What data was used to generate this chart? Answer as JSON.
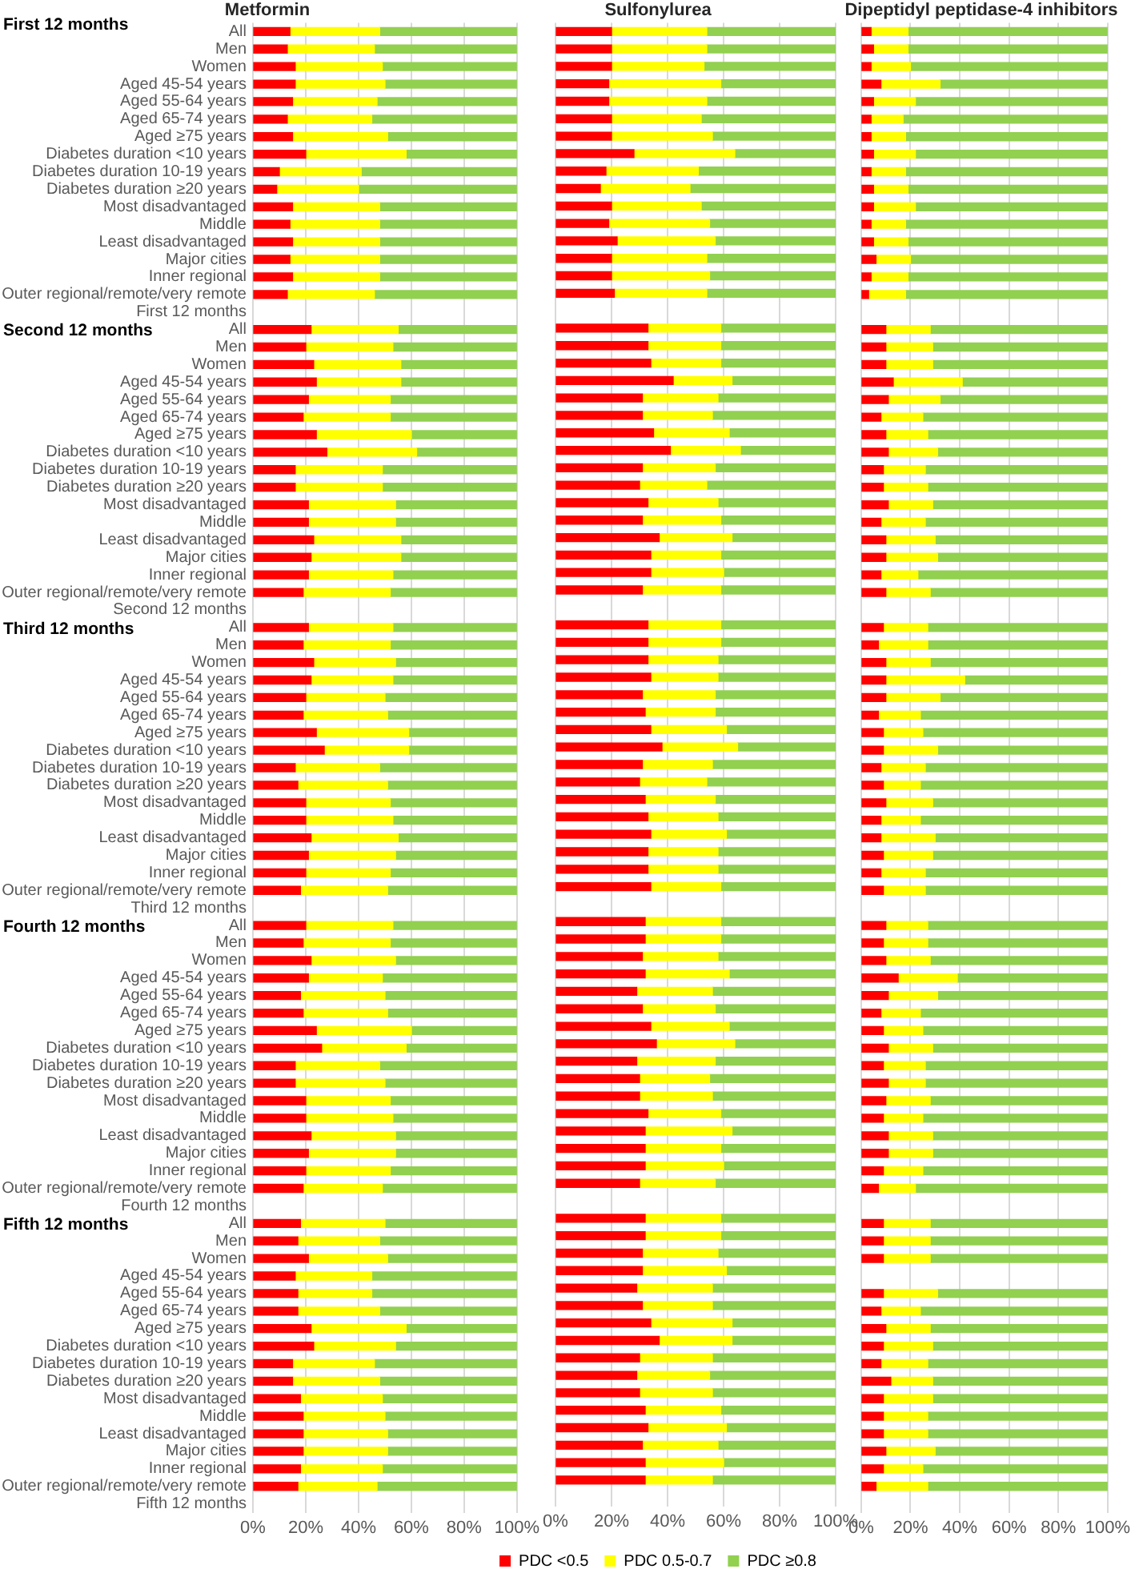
{
  "chart_data": [
    {
      "type": "bar",
      "title": "Metformin",
      "orientation": "horizontal",
      "stacked": true,
      "grid": "x",
      "xlim": [
        0,
        100
      ],
      "xticks": [
        {
          "value": 0,
          "label": "0%"
        },
        {
          "value": 20,
          "label": "20%"
        },
        {
          "value": 40,
          "label": "40%"
        },
        {
          "value": 60,
          "label": "60%"
        },
        {
          "value": 80,
          "label": "80%"
        },
        {
          "value": 100,
          "label": "100%"
        }
      ],
      "annotations": [
        "First 12 months",
        "Second 12 months",
        "Third 12 months",
        "Fourth 12 months",
        "Fifth 12 months"
      ],
      "categories": [
        "All",
        "Men",
        "Women",
        "Aged 45-54 years",
        "Aged 55-64 years",
        "Aged 65-74 years",
        "Aged ≥75 years",
        "Diabetes duration <10 years",
        "Diabetes duration 10-19 years",
        "Diabetes duration ≥20 years",
        "Most disadvantaged",
        "Middle",
        "Least disadvantaged",
        "Major cities",
        "Inner regional",
        "Outer regional/remote/very remote",
        "First 12 months",
        "All",
        "Men",
        "Women",
        "Aged 45-54 years",
        "Aged 55-64 years",
        "Aged 65-74 years",
        "Aged ≥75 years",
        "Diabetes duration <10 years",
        "Diabetes duration 10-19 years",
        "Diabetes duration ≥20 years",
        "Most disadvantaged",
        "Middle",
        "Least disadvantaged",
        "Major cities",
        "Inner regional",
        "Outer regional/remote/very remote",
        "Second 12 months",
        "All",
        "Men",
        "Women",
        "Aged 45-54 years",
        "Aged 55-64 years",
        "Aged 65-74 years",
        "Aged ≥75 years",
        "Diabetes duration <10 years",
        "Diabetes duration 10-19 years",
        "Diabetes duration ≥20 years",
        "Most disadvantaged",
        "Middle",
        "Least disadvantaged",
        "Major cities",
        "Inner regional",
        "Outer regional/remote/very remote",
        "Third 12 months",
        "All",
        "Men",
        "Women",
        "Aged 45-54 years",
        "Aged 55-64 years",
        "Aged 65-74 years",
        "Aged ≥75 years",
        "Diabetes duration <10 years",
        "Diabetes duration 10-19 years",
        "Diabetes duration ≥20 years",
        "Most disadvantaged",
        "Middle",
        "Least disadvantaged",
        "Major cities",
        "Inner regional",
        "Outer regional/remote/very remote",
        "Fourth 12 months",
        "All",
        "Men",
        "Women",
        "Aged 45-54 years",
        "Aged 55-64 years",
        "Aged 65-74 years",
        "Aged ≥75 years",
        "Diabetes duration <10 years",
        "Diabetes duration 10-19 years",
        "Diabetes duration ≥20 years",
        "Most disadvantaged",
        "Middle",
        "Least disadvantaged",
        "Major cities",
        "Inner regional",
        "Outer regional/remote/very remote",
        "Fifth 12 months"
      ],
      "series": [
        {
          "color": "#ff0000",
          "values": [
            14,
            13,
            16,
            16,
            15,
            13,
            15,
            20,
            10,
            9,
            15,
            14,
            15,
            14,
            15,
            13,
            null,
            22,
            20,
            23,
            24,
            21,
            19,
            24,
            28,
            16,
            16,
            21,
            21,
            23,
            22,
            21,
            19,
            null,
            21,
            19,
            23,
            22,
            20,
            19,
            24,
            27,
            16,
            17,
            20,
            20,
            22,
            21,
            20,
            18,
            null,
            20,
            19,
            22,
            21,
            18,
            19,
            24,
            26,
            16,
            16,
            20,
            20,
            22,
            21,
            20,
            19,
            null,
            18,
            17,
            21,
            16,
            17,
            17,
            22,
            23,
            15,
            15,
            18,
            19,
            19,
            19,
            18,
            17,
            null
          ]
        },
        {
          "color": "#ffff00",
          "values": [
            34,
            33,
            33,
            34,
            32,
            32,
            36,
            38,
            31,
            31,
            33,
            34,
            33,
            34,
            33,
            33,
            null,
            33,
            33,
            33,
            32,
            31,
            33,
            36,
            34,
            33,
            33,
            33,
            33,
            33,
            34,
            32,
            33,
            null,
            32,
            33,
            31,
            31,
            30,
            32,
            35,
            32,
            32,
            34,
            32,
            33,
            33,
            33,
            32,
            33,
            null,
            33,
            33,
            32,
            28,
            32,
            32,
            36,
            32,
            32,
            34,
            32,
            33,
            32,
            33,
            32,
            30,
            null,
            32,
            31,
            30,
            29,
            28,
            31,
            36,
            31,
            31,
            33,
            31,
            31,
            32,
            32,
            31,
            30,
            null
          ]
        },
        {
          "color": "#92d050",
          "values": [
            52,
            54,
            51,
            50,
            53,
            55,
            49,
            42,
            59,
            60,
            52,
            52,
            52,
            52,
            52,
            54,
            null,
            45,
            47,
            44,
            44,
            48,
            48,
            40,
            38,
            51,
            51,
            46,
            46,
            44,
            44,
            47,
            48,
            null,
            47,
            48,
            46,
            47,
            50,
            49,
            41,
            41,
            52,
            49,
            48,
            47,
            45,
            46,
            48,
            49,
            null,
            47,
            48,
            46,
            51,
            50,
            49,
            40,
            42,
            52,
            50,
            48,
            47,
            46,
            46,
            48,
            51,
            null,
            50,
            52,
            49,
            55,
            55,
            52,
            42,
            46,
            54,
            52,
            51,
            50,
            49,
            49,
            51,
            53,
            null
          ]
        }
      ]
    },
    {
      "type": "bar",
      "title": "Sulfonylurea",
      "orientation": "horizontal",
      "stacked": true,
      "grid": "x",
      "legend": "bottom",
      "xlim": [
        0,
        100
      ],
      "xticks": [
        {
          "value": 0,
          "label": "0%"
        },
        {
          "value": 20,
          "label": "20%"
        },
        {
          "value": 40,
          "label": "40%"
        },
        {
          "value": 60,
          "label": "60%"
        },
        {
          "value": 80,
          "label": "80%"
        },
        {
          "value": 100,
          "label": "100%"
        }
      ],
      "categories": [
        null,
        null,
        null,
        null,
        null,
        null,
        null,
        null,
        null,
        null,
        null,
        null,
        null,
        null,
        null,
        null,
        null,
        null,
        null,
        null,
        null,
        null,
        null,
        null,
        null,
        null,
        null,
        null,
        null,
        null,
        null,
        null,
        null,
        null,
        null,
        null,
        null,
        null,
        null,
        null,
        null,
        null,
        null,
        null,
        null,
        null,
        null,
        null,
        null,
        null,
        null,
        null,
        null,
        null,
        null,
        null,
        null,
        null,
        null,
        null,
        null,
        null,
        null,
        null,
        null,
        null,
        null,
        null,
        null,
        null,
        null,
        null,
        null,
        null,
        null,
        null,
        null,
        null,
        null,
        null,
        null,
        null,
        null,
        null,
        null
      ],
      "series": [
        {
          "name": "PDC <0.5",
          "color": "#ff0000",
          "values": [
            20,
            20,
            20,
            19,
            19,
            20,
            20,
            28,
            18,
            16,
            20,
            19,
            22,
            20,
            20,
            21,
            null,
            33,
            33,
            34,
            42,
            31,
            31,
            35,
            41,
            31,
            30,
            33,
            31,
            37,
            34,
            34,
            31,
            null,
            33,
            33,
            33,
            34,
            31,
            32,
            34,
            38,
            31,
            30,
            32,
            33,
            34,
            33,
            33,
            34,
            null,
            32,
            32,
            31,
            32,
            29,
            31,
            34,
            36,
            29,
            30,
            30,
            33,
            32,
            32,
            32,
            30,
            null,
            32,
            32,
            31,
            31,
            29,
            31,
            34,
            37,
            30,
            29,
            30,
            32,
            33,
            31,
            32,
            32,
            null
          ]
        },
        {
          "name": "PDC 0.5-0.7",
          "color": "#ffff00",
          "values": [
            34,
            34,
            33,
            40,
            35,
            32,
            36,
            36,
            33,
            32,
            32,
            36,
            35,
            34,
            35,
            33,
            null,
            26,
            26,
            25,
            21,
            27,
            25,
            27,
            25,
            26,
            24,
            25,
            28,
            26,
            25,
            26,
            28,
            null,
            26,
            26,
            25,
            24,
            26,
            25,
            27,
            27,
            25,
            24,
            25,
            25,
            27,
            25,
            25,
            25,
            null,
            27,
            27,
            27,
            30,
            27,
            26,
            28,
            28,
            28,
            25,
            26,
            26,
            31,
            27,
            28,
            27,
            null,
            27,
            27,
            27,
            30,
            27,
            25,
            29,
            26,
            26,
            26,
            26,
            27,
            28,
            27,
            28,
            24,
            null
          ]
        },
        {
          "name": "PDC ≥0.8",
          "color": "#92d050",
          "values": [
            46,
            46,
            47,
            41,
            46,
            48,
            44,
            36,
            49,
            52,
            48,
            45,
            43,
            46,
            45,
            46,
            null,
            41,
            41,
            41,
            37,
            42,
            44,
            38,
            34,
            43,
            46,
            42,
            41,
            37,
            41,
            40,
            41,
            null,
            41,
            41,
            42,
            42,
            43,
            43,
            39,
            35,
            44,
            46,
            43,
            42,
            39,
            42,
            42,
            41,
            null,
            41,
            41,
            42,
            38,
            44,
            43,
            38,
            36,
            43,
            45,
            44,
            41,
            37,
            41,
            40,
            43,
            null,
            41,
            41,
            42,
            39,
            44,
            44,
            37,
            37,
            44,
            45,
            44,
            41,
            39,
            42,
            40,
            44,
            null
          ]
        }
      ]
    },
    {
      "type": "bar",
      "title": "Dipeptidyl peptidase-4 inhibitors",
      "orientation": "horizontal",
      "stacked": true,
      "grid": "x",
      "xlim": [
        0,
        100
      ],
      "xticks": [
        {
          "value": 0,
          "label": "0%"
        },
        {
          "value": 20,
          "label": "20%"
        },
        {
          "value": 40,
          "label": "40%"
        },
        {
          "value": 60,
          "label": "60%"
        },
        {
          "value": 80,
          "label": "80%"
        },
        {
          "value": 100,
          "label": "100%"
        }
      ],
      "categories": [
        null,
        null,
        null,
        null,
        null,
        null,
        null,
        null,
        null,
        null,
        null,
        null,
        null,
        null,
        null,
        null,
        null,
        null,
        null,
        null,
        null,
        null,
        null,
        null,
        null,
        null,
        null,
        null,
        null,
        null,
        null,
        null,
        null,
        null,
        null,
        null,
        null,
        null,
        null,
        null,
        null,
        null,
        null,
        null,
        null,
        null,
        null,
        null,
        null,
        null,
        null,
        null,
        null,
        null,
        null,
        null,
        null,
        null,
        null,
        null,
        null,
        null,
        null,
        null,
        null,
        null,
        null,
        null,
        null,
        null,
        null,
        null,
        null,
        null,
        null,
        null,
        null,
        null,
        null,
        null,
        null,
        null,
        null,
        null,
        null
      ],
      "series": [
        {
          "color": "#ff0000",
          "values": [
            4,
            5,
            4,
            8,
            5,
            4,
            4,
            5,
            4,
            5,
            5,
            4,
            5,
            6,
            4,
            3,
            null,
            10,
            10,
            10,
            13,
            11,
            8,
            10,
            11,
            9,
            9,
            11,
            8,
            10,
            10,
            8,
            10,
            null,
            9,
            7,
            10,
            10,
            10,
            7,
            9,
            9,
            8,
            9,
            10,
            8,
            8,
            9,
            8,
            9,
            null,
            10,
            9,
            10,
            15,
            11,
            8,
            9,
            11,
            9,
            11,
            10,
            9,
            11,
            11,
            9,
            7,
            null,
            9,
            9,
            9,
            null,
            9,
            8,
            10,
            9,
            8,
            12,
            9,
            9,
            9,
            10,
            9,
            6,
            null
          ]
        },
        {
          "color": "#ffff00",
          "values": [
            15,
            14,
            16,
            24,
            17,
            13,
            14,
            17,
            14,
            14,
            17,
            14,
            14,
            14,
            15,
            15,
            null,
            18,
            19,
            19,
            28,
            21,
            17,
            17,
            20,
            17,
            18,
            18,
            18,
            20,
            21,
            15,
            18,
            null,
            18,
            20,
            18,
            32,
            22,
            17,
            16,
            22,
            18,
            15,
            19,
            16,
            22,
            20,
            18,
            17,
            null,
            17,
            18,
            18,
            24,
            20,
            16,
            16,
            18,
            17,
            15,
            18,
            16,
            18,
            18,
            16,
            15,
            null,
            19,
            19,
            19,
            null,
            22,
            16,
            18,
            20,
            19,
            17,
            20,
            18,
            18,
            20,
            16,
            21,
            null
          ]
        },
        {
          "color": "#92d050",
          "values": [
            81,
            81,
            80,
            68,
            78,
            83,
            82,
            78,
            82,
            81,
            78,
            82,
            81,
            80,
            81,
            82,
            null,
            72,
            71,
            71,
            59,
            68,
            75,
            73,
            69,
            74,
            73,
            71,
            74,
            70,
            69,
            77,
            72,
            null,
            73,
            73,
            72,
            58,
            68,
            76,
            75,
            69,
            74,
            76,
            71,
            76,
            70,
            71,
            74,
            74,
            null,
            73,
            73,
            72,
            61,
            69,
            76,
            75,
            71,
            74,
            74,
            72,
            75,
            71,
            71,
            75,
            78,
            null,
            72,
            72,
            72,
            null,
            69,
            76,
            72,
            71,
            73,
            71,
            71,
            73,
            73,
            70,
            75,
            73,
            null
          ]
        }
      ]
    }
  ]
}
